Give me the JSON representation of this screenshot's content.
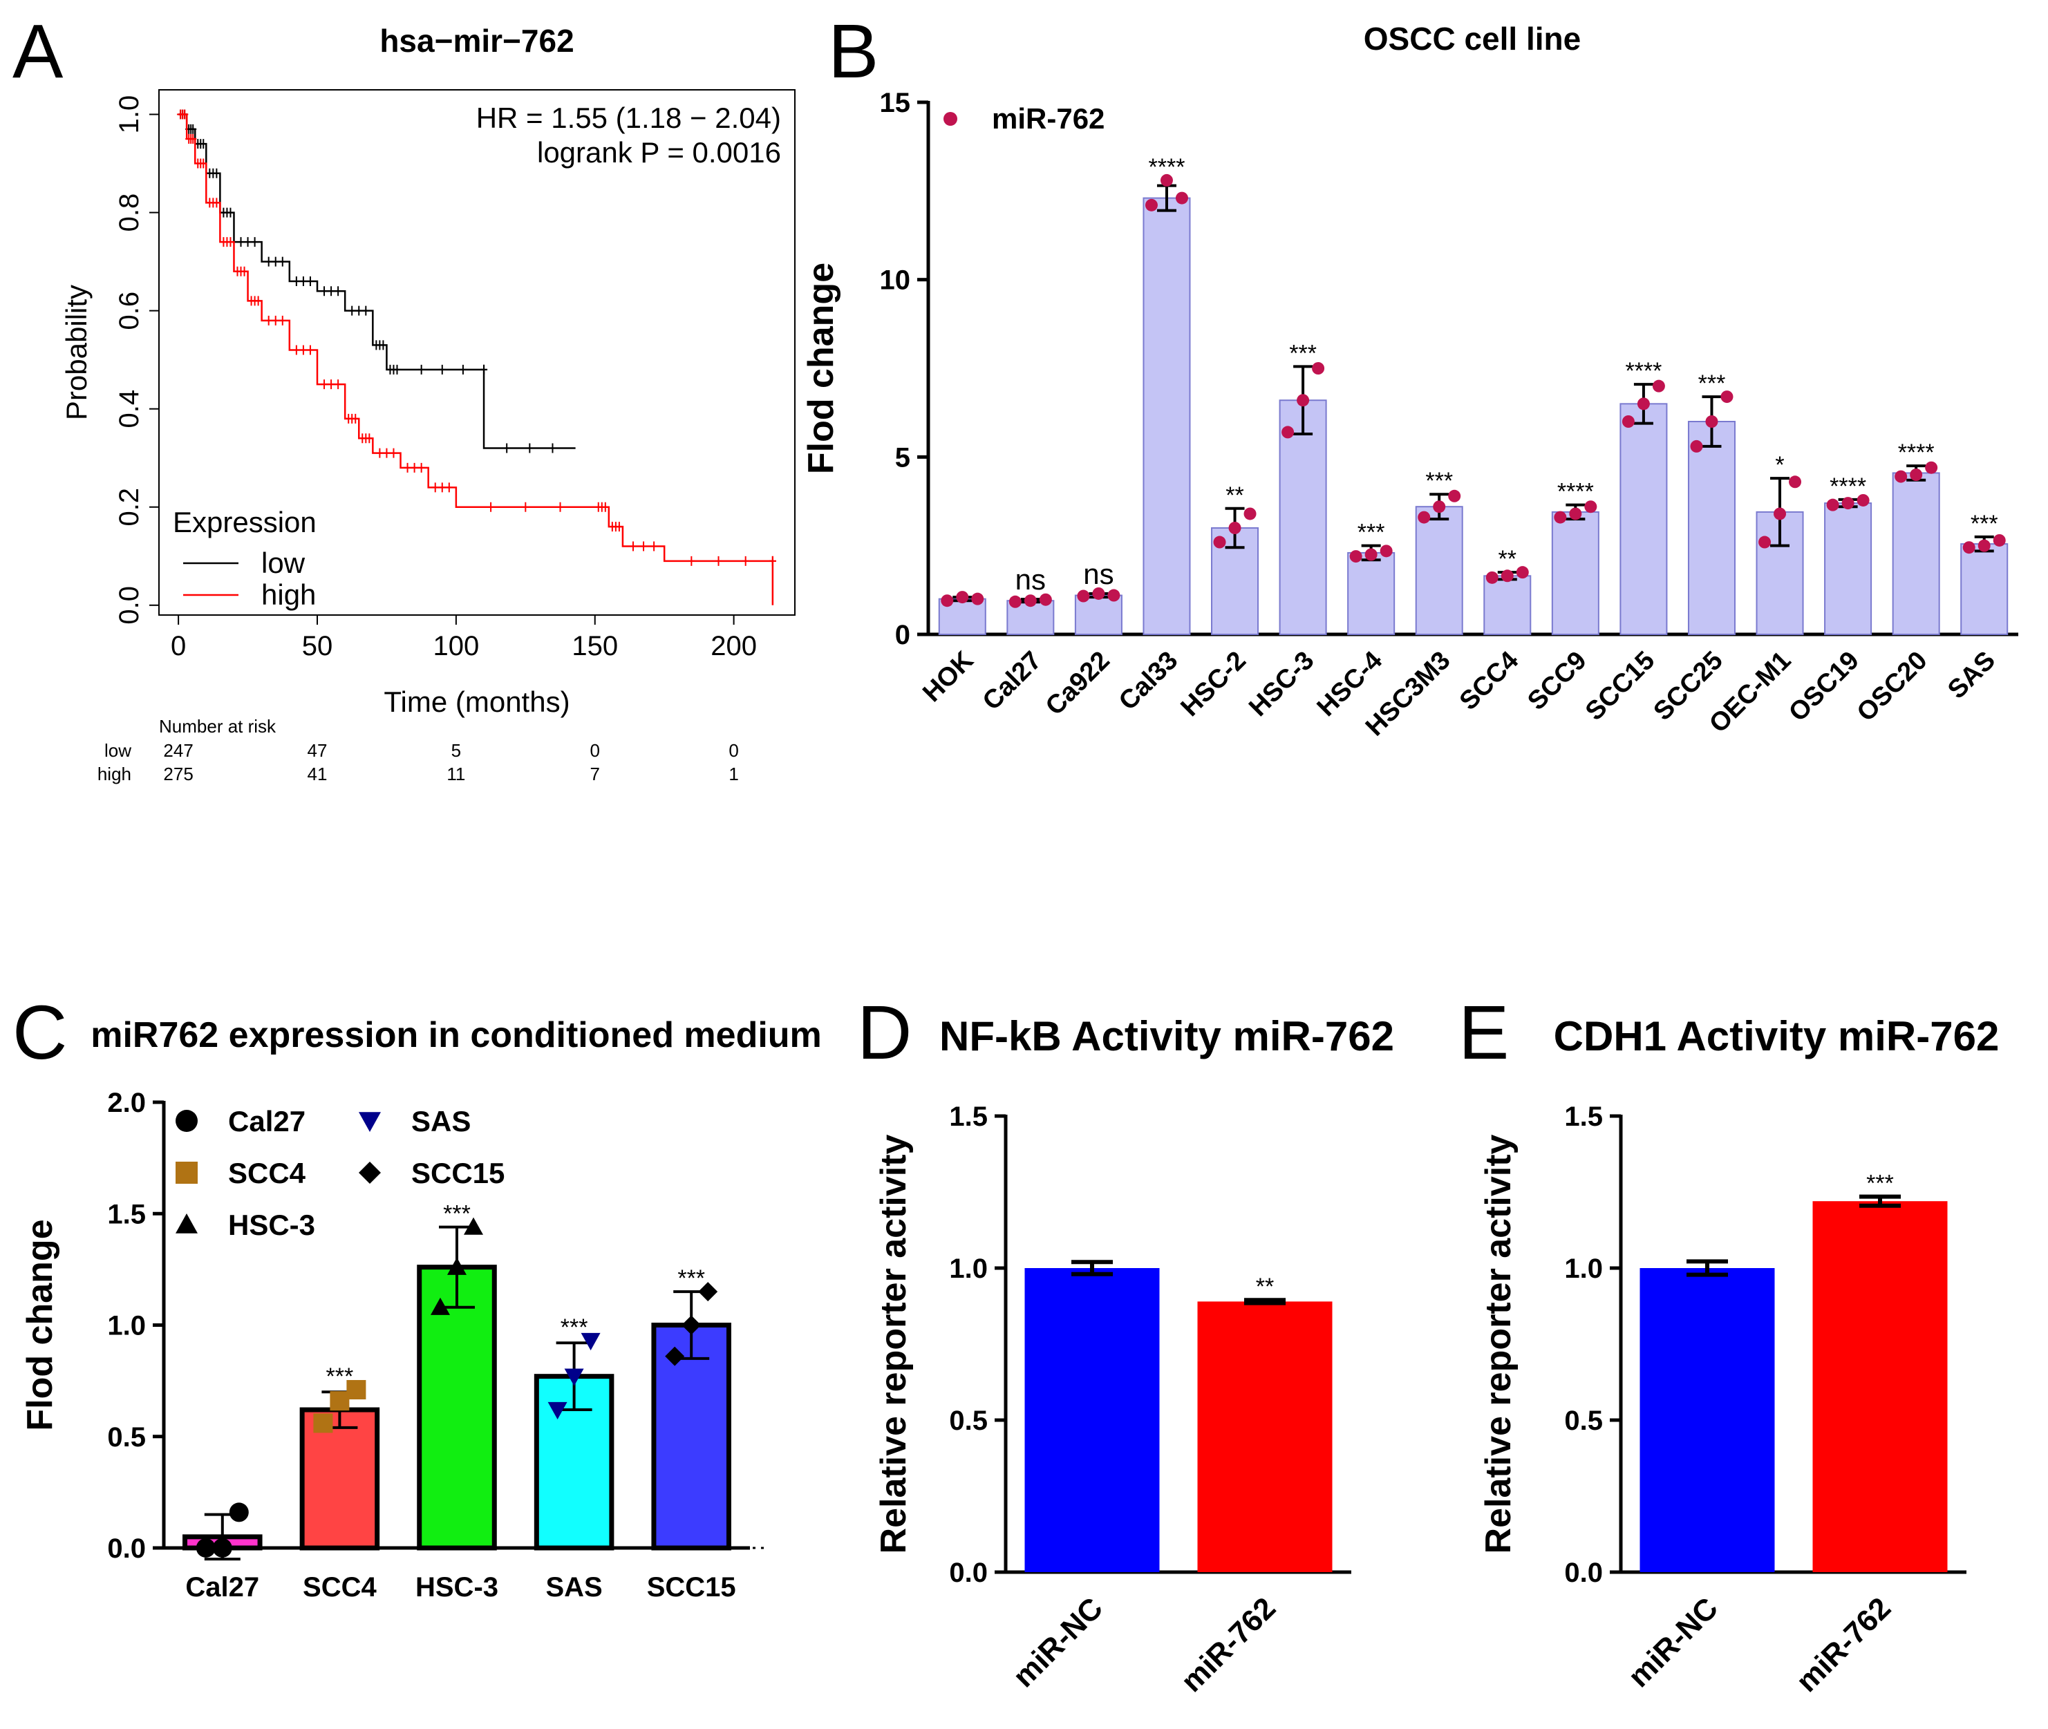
{
  "panels": {
    "A": {
      "letter": "A",
      "title": "hsa−mir−762"
    },
    "B": {
      "letter": "B",
      "title": "OSCC cell line"
    },
    "C": {
      "letter": "C",
      "title": "miR762 expression in conditioned medium"
    },
    "D": {
      "letter": "D",
      "title": "NF-kB Activity miR-762"
    },
    "E": {
      "letter": "E",
      "title": "CDH1 Activity miR-762"
    }
  },
  "chart_data": [
    {
      "id": "A",
      "type": "line",
      "subtype": "kaplan-meier",
      "title": "hsa−mir−762",
      "xlabel": "Time (months)",
      "ylabel": "Probability",
      "xlim": [
        -7,
        222
      ],
      "ylim": [
        -0.02,
        1.05
      ],
      "xticks": [
        0,
        50,
        100,
        150,
        200
      ],
      "xtick_labels": [
        "0",
        "50",
        "100",
        "150",
        "200"
      ],
      "yticks": [
        0.0,
        0.2,
        0.4,
        0.6,
        0.8,
        1.0
      ],
      "ytick_labels": [
        "0.0",
        "0.2",
        "0.4",
        "0.6",
        "0.8",
        "1.0"
      ],
      "annotations": [
        "HR = 1.55 (1.18 − 2.04)",
        "logrank P = 0.0016"
      ],
      "legend": {
        "title": "Expression",
        "position": "bottom-left"
      },
      "series": [
        {
          "name": "low",
          "color": "#000000",
          "x": [
            0,
            3,
            6,
            10,
            15,
            20,
            30,
            40,
            50,
            60,
            70,
            75,
            80,
            110,
            110,
            143
          ],
          "y": [
            1.0,
            0.97,
            0.94,
            0.88,
            0.8,
            0.74,
            0.7,
            0.66,
            0.64,
            0.6,
            0.53,
            0.48,
            0.48,
            0.48,
            0.32,
            0.32
          ]
        },
        {
          "name": "high",
          "color": "#ff0000",
          "x": [
            0,
            3,
            6,
            10,
            15,
            20,
            25,
            30,
            40,
            50,
            60,
            65,
            70,
            80,
            90,
            100,
            150,
            155,
            160,
            175,
            214,
            214
          ],
          "y": [
            1.0,
            0.95,
            0.9,
            0.82,
            0.74,
            0.68,
            0.62,
            0.58,
            0.52,
            0.45,
            0.38,
            0.34,
            0.31,
            0.28,
            0.24,
            0.2,
            0.2,
            0.16,
            0.12,
            0.09,
            0.09,
            0.0
          ]
        }
      ],
      "risk_table": {
        "header": "Number at risk",
        "times": [
          0,
          50,
          100,
          150,
          200
        ],
        "rows": [
          {
            "name": "low",
            "values": [
              "247",
              "47",
              "5",
              "0",
              "0"
            ],
            "color": "#000000"
          },
          {
            "name": "high",
            "values": [
              "275",
              "41",
              "11",
              "7",
              "1"
            ],
            "color": "#ff0000"
          }
        ]
      }
    },
    {
      "id": "B",
      "type": "bar",
      "title": "OSCC cell line",
      "ylabel": "Flod change",
      "ylim": [
        0,
        15
      ],
      "yticks": [
        0,
        5,
        10,
        15
      ],
      "legend": "miR-762",
      "bar_color": "#c4c4f5",
      "point_color": "#c0134f",
      "categories": [
        "HOK",
        "Cal27",
        "Ca922",
        "Cal33",
        "HSC-2",
        "HSC-3",
        "HSC-4",
        "HSC3M3",
        "SCC4",
        "SCC9",
        "SCC15",
        "SCC25",
        "OEC-M1",
        "OSC19",
        "OSC20",
        "SAS"
      ],
      "values": [
        1.0,
        0.95,
        1.1,
        12.3,
        3.0,
        6.6,
        2.3,
        3.6,
        1.65,
        3.45,
        6.5,
        6.0,
        3.45,
        3.7,
        4.55,
        2.55
      ],
      "errors": [
        0.05,
        0.04,
        0.05,
        0.35,
        0.55,
        0.95,
        0.2,
        0.35,
        0.1,
        0.2,
        0.55,
        0.7,
        0.95,
        0.1,
        0.2,
        0.2
      ],
      "points": [
        [
          0.95,
          1.05,
          1.0
        ],
        [
          0.92,
          0.95,
          0.98
        ],
        [
          1.08,
          1.15,
          1.1
        ],
        [
          12.1,
          12.8,
          12.3
        ],
        [
          2.6,
          3.0,
          3.4
        ],
        [
          5.7,
          6.6,
          7.5
        ],
        [
          2.2,
          2.25,
          2.35
        ],
        [
          3.3,
          3.6,
          3.9
        ],
        [
          1.6,
          1.65,
          1.75
        ],
        [
          3.3,
          3.4,
          3.6
        ],
        [
          6.0,
          6.5,
          7.0
        ],
        [
          5.3,
          6.0,
          6.7
        ],
        [
          2.6,
          3.4,
          4.3
        ],
        [
          3.65,
          3.7,
          3.78
        ],
        [
          4.45,
          4.5,
          4.7
        ],
        [
          2.45,
          2.5,
          2.65
        ]
      ],
      "significance": [
        "",
        "ns",
        "ns",
        "****",
        "**",
        "***",
        "***",
        "***",
        "**",
        "****",
        "****",
        "***",
        "*",
        "****",
        "****",
        "***"
      ]
    },
    {
      "id": "C",
      "type": "bar",
      "title": "miR762 expression in conditioned medium",
      "ylabel": "Flod change",
      "ylim": [
        0,
        2.0
      ],
      "yticks": [
        0.0,
        0.5,
        1.0,
        1.5,
        2.0
      ],
      "ytick_labels": [
        "0.0",
        "0.5",
        "1.0",
        "1.5",
        "2.0"
      ],
      "categories": [
        "Cal27",
        "SCC4",
        "HSC-3",
        "SAS",
        "SCC15"
      ],
      "values": [
        0.05,
        0.62,
        1.26,
        0.77,
        1.0
      ],
      "errors": [
        0.1,
        0.08,
        0.18,
        0.15,
        0.15
      ],
      "colors": [
        "#ff33cc",
        "#ff4444",
        "#11ee11",
        "#11ffff",
        "#3c3cff"
      ],
      "markers": [
        "circle",
        "square",
        "triangle-up",
        "triangle-down",
        "diamond"
      ],
      "marker_colors": [
        "#000000",
        "#b07314",
        "#000000",
        "#00008b",
        "#000000"
      ],
      "points": [
        [
          0.0,
          0.0,
          0.16
        ],
        [
          0.56,
          0.66,
          0.71
        ],
        [
          1.08,
          1.26,
          1.44
        ],
        [
          0.62,
          0.77,
          0.93
        ],
        [
          0.86,
          1.0,
          1.15
        ]
      ],
      "significance": [
        "",
        "***",
        "***",
        "***",
        "***"
      ],
      "legend": [
        "Cal27",
        "SCC4",
        "HSC-3",
        "SAS",
        "SCC15"
      ],
      "baseline": "dotted line at 0"
    },
    {
      "id": "D",
      "type": "bar",
      "title": "NF-kB Activity miR-762",
      "ylabel": "Relative reporter activity",
      "ylim": [
        0,
        1.5
      ],
      "yticks": [
        0.0,
        0.5,
        1.0,
        1.5
      ],
      "ytick_labels": [
        "0.0",
        "0.5",
        "1.0",
        "1.5"
      ],
      "categories": [
        "miR-NC",
        "miR-762"
      ],
      "values": [
        1.0,
        0.89
      ],
      "errors": [
        0.02,
        0.005
      ],
      "colors": [
        "#0000ff",
        "#ff0000"
      ],
      "significance": [
        "",
        "**"
      ]
    },
    {
      "id": "E",
      "type": "bar",
      "title": "CDH1 Activity miR-762",
      "ylabel": "Relative reporter activity",
      "ylim": [
        0,
        1.5
      ],
      "yticks": [
        0.0,
        0.5,
        1.0,
        1.5
      ],
      "ytick_labels": [
        "0.0",
        "0.5",
        "1.0",
        "1.5"
      ],
      "categories": [
        "miR-NC",
        "miR-762"
      ],
      "values": [
        1.0,
        1.22
      ],
      "errors": [
        0.022,
        0.015
      ],
      "colors": [
        "#0000ff",
        "#ff0000"
      ],
      "significance": [
        "",
        "***"
      ]
    }
  ]
}
